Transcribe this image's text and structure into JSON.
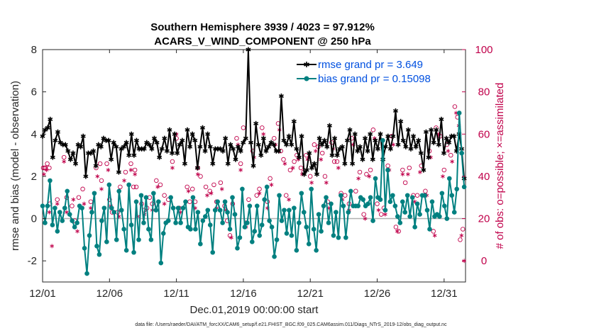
{
  "chart_data": {
    "type": "line",
    "title": "Southern Hemisphere 3939 / 4023 = 97.912%",
    "subtitle": "ACARS_V_WIND_COMPONENT @ 250 hPa",
    "xlabel": "Dec.01,2019 00:00:00 start",
    "ylabel": "rmse and bias (model - observation)",
    "ylabel_right": "# of obs: o=possible; ×=assimilated",
    "footnote": "data file: /Users/raeder/DAI/ATM_forcXX/CAM6_setup/f.e21.FHIST_BGC.f09_025.CAM6assim.011/Diags_NTrS_2019-12/obs_diag_output.nc",
    "xlim": [
      0,
      31.6
    ],
    "ylim": [
      -3,
      8
    ],
    "ylim_right": [
      -10,
      100
    ],
    "x_ticks": [
      0,
      5,
      10,
      15,
      20,
      25,
      30
    ],
    "x_tick_labels": [
      "12/01",
      "12/06",
      "12/11",
      "12/16",
      "12/21",
      "12/26",
      "12/31"
    ],
    "y_ticks": [
      -2,
      0,
      2,
      4,
      6,
      8
    ],
    "y_tick_labels": [
      "-2",
      "0",
      "2",
      "4",
      "6",
      "8"
    ],
    "y_ticks_right": [
      0,
      20,
      40,
      60,
      80,
      100
    ],
    "y_tick_labels_right": [
      "0",
      "20",
      "40",
      "60",
      "80",
      "100"
    ],
    "legend_position": "top-right",
    "colors": {
      "rmse": "#000000",
      "bias": "#008080",
      "obs": "#c0004a",
      "zero_line": "#b0b0b0",
      "axis": "#262626",
      "legend_text": "#0050e0"
    },
    "series": [
      {
        "name": "rmse grand pr = 3.649",
        "color": "#000000",
        "marker": "asterisk",
        "values": [
          3.9,
          4.2,
          4.3,
          4.7,
          2.9,
          3.7,
          4.1,
          3.6,
          3.5,
          3.5,
          3.2,
          2.8,
          3.1,
          2.6,
          3.5,
          3.4,
          3.9,
          2.0,
          3.1,
          3.1,
          3.2,
          2.5,
          3.5,
          3.4,
          3.8,
          3.7,
          3.7,
          2.8,
          3.6,
          3.4,
          2.2,
          3.3,
          3.4,
          3.6,
          3.0,
          4.0,
          3.0,
          3.7,
          3.3,
          3.3,
          3.3,
          3.6,
          3.5,
          3.3,
          3.8,
          3.6,
          2.9,
          3.3,
          3.8,
          3.2,
          4.2,
          3.1,
          4.0,
          3.1,
          3.5,
          3.7,
          2.6,
          4.2,
          3.4,
          4.0,
          3.7,
          2.4,
          3.4,
          4.3,
          3.2,
          4.0,
          3.4,
          2.6,
          3.3,
          3.3,
          3.3,
          3.2,
          3.8,
          2.6,
          3.5,
          3.3,
          2.8,
          3.4,
          3.2,
          3.6,
          3.8,
          8.0,
          3.6,
          2.5,
          4.5,
          3.5,
          3.0,
          3.8,
          3.2,
          3.4,
          3.6,
          3.5,
          3.2,
          3.2,
          5.8,
          3.7,
          3.5,
          3.9,
          3.5,
          4.6,
          3.3,
          2.9,
          3.9,
          2.1,
          2.3,
          3.1,
          2.4,
          2.6,
          2.1,
          3.8,
          3.5,
          3.7,
          3.4,
          4.4,
          3.0,
          3.8,
          3.0,
          3.3,
          3.4,
          2.6,
          3.7,
          4.2,
          2.6,
          4.0,
          3.2,
          3.4,
          2.8,
          3.8,
          3.2,
          4.0,
          2.8,
          3.7,
          3.3,
          4.0,
          2.8,
          3.4,
          3.9,
          3.3,
          3.9,
          5.1,
          3.5,
          4.6,
          3.7,
          3.4,
          4.2,
          3.3,
          3.9,
          3.4,
          3.7,
          3.1,
          2.3,
          4.1,
          2.9,
          4.2,
          3.6,
          4.2,
          3.5,
          4.7,
          3.1,
          3.8,
          3.6,
          3.9,
          3.9,
          3.2,
          4.0,
          3.3,
          1.9
        ]
      },
      {
        "name": "bias grand pr = 0.15098",
        "color": "#008080",
        "marker": "dot",
        "values": [
          0.6,
          -0.2,
          0.6,
          1.8,
          -0.3,
          0.5,
          -0.6,
          0.3,
          -0.1,
          0.5,
          1.3,
          0.2,
          -0.1,
          -0.4,
          -0.2,
          0.6,
          0.5,
          -1.4,
          -2.6,
          -0.8,
          0.3,
          1.2,
          -1.3,
          -1.7,
          -0.1,
          0.5,
          -1.1,
          1.6,
          0.5,
          0.3,
          -1.0,
          1.3,
          0.4,
          -0.5,
          -1.5,
          1.6,
          -0.3,
          -1.6,
          0.8,
          -1.0,
          1.1,
          -0.2,
          1.0,
          -0.5,
          -1.0,
          1.2,
          0.4,
          0.8,
          -2.1,
          -0.7,
          -0.2,
          -0.1,
          1.0,
          0.5,
          -0.2,
          0.5,
          -0.2,
          0.5,
          0.8,
          -0.4,
          -0.5,
          1.0,
          -0.5,
          0.3,
          -1.2,
          -0.1,
          0.1,
          0.4,
          -0.3,
          -1.6,
          0.4,
          0.8,
          0.4,
          -0.2,
          0.8,
          0.3,
          -0.5,
          1.0,
          0.2,
          -1.4,
          -0.9,
          1.4,
          -0.4,
          -0.2,
          0.6,
          -1.1,
          -0.6,
          0.6,
          -0.8,
          -0.3,
          0.9,
          1.5,
          -0.1,
          -0.4,
          -1.8,
          -1.0,
          1.1,
          -0.1,
          0.4,
          -0.7,
          0.4,
          -0.8,
          0.5,
          -1.5,
          -0.2,
          1.2,
          0.3,
          -0.4,
          -1.2,
          1.4,
          -0.5,
          -1.5,
          0.2,
          -0.6,
          0.6,
          1.0,
          -0.2,
          0.7,
          -0.8,
          0.3,
          -0.9,
          1.1,
          0.6,
          -0.9,
          0.3,
          1.3,
          0.6,
          0.6,
          0.6,
          1.0,
          0.9,
          0.6,
          0.7,
          1.0,
          -0.1,
          1.9,
          1.0,
          0.9,
          3.7,
          0.4,
          2.3,
          0.8,
          1.1,
          0.6,
          0.1,
          -0.2,
          0.8,
          0.3,
          1.1,
          0.1,
          1.0,
          -0.4,
          0.7,
          0.2,
          1.1,
          1.1,
          0.4,
          -0.5,
          0.8,
          0.1,
          0.2,
          0.1,
          1.2,
          0.6,
          0.0,
          1.9,
          1.1,
          0.3,
          1.4,
          5.0,
          3.1,
          1.5
        ]
      }
    ],
    "obs_possible": [
      [
        0.05,
        44
      ],
      [
        0.15,
        44
      ],
      [
        0.2,
        44
      ],
      [
        0.35,
        46
      ],
      [
        0.5,
        44
      ],
      [
        0.55,
        27
      ],
      [
        1.1,
        29
      ],
      [
        1.6,
        49
      ],
      [
        1.8,
        30
      ],
      [
        2.2,
        26
      ],
      [
        2.4,
        19
      ],
      [
        2.7,
        30
      ],
      [
        3.0,
        34
      ],
      [
        3.6,
        28
      ],
      [
        4.0,
        44
      ],
      [
        4.3,
        46
      ],
      [
        4.4,
        38
      ],
      [
        4.8,
        46
      ],
      [
        5.0,
        29
      ],
      [
        5.2,
        23
      ],
      [
        5.6,
        23
      ],
      [
        5.8,
        35
      ],
      [
        6.2,
        42
      ],
      [
        6.6,
        46
      ],
      [
        6.8,
        35
      ],
      [
        6.9,
        43
      ],
      [
        7.0,
        35
      ],
      [
        7.4,
        27
      ],
      [
        7.6,
        24
      ],
      [
        7.8,
        25
      ],
      [
        8.0,
        30
      ],
      [
        8.2,
        27
      ],
      [
        8.5,
        38
      ],
      [
        8.8,
        36
      ],
      [
        9.1,
        31
      ],
      [
        9.4,
        29
      ],
      [
        9.7,
        47
      ],
      [
        10.0,
        58
      ],
      [
        10.2,
        25
      ],
      [
        10.8,
        35
      ],
      [
        11.0,
        28
      ],
      [
        11.2,
        34
      ],
      [
        11.4,
        28
      ],
      [
        11.6,
        44
      ],
      [
        11.8,
        40
      ],
      [
        12.2,
        35
      ],
      [
        12.5,
        33
      ],
      [
        12.8,
        36
      ],
      [
        13.0,
        28
      ],
      [
        13.3,
        37
      ],
      [
        13.6,
        26
      ],
      [
        13.8,
        19
      ],
      [
        14.0,
        12
      ],
      [
        14.2,
        27
      ],
      [
        14.5,
        58
      ],
      [
        14.8,
        46
      ],
      [
        15.0,
        63
      ],
      [
        15.2,
        18
      ],
      [
        15.4,
        29
      ],
      [
        15.7,
        52
      ],
      [
        16.0,
        31
      ],
      [
        16.2,
        34
      ],
      [
        16.4,
        63
      ],
      [
        16.8,
        28
      ],
      [
        17.0,
        39
      ],
      [
        17.3,
        58
      ],
      [
        17.6,
        65
      ],
      [
        17.8,
        52
      ],
      [
        18.0,
        48
      ],
      [
        18.2,
        31
      ],
      [
        18.5,
        43
      ],
      [
        18.8,
        47
      ],
      [
        19.0,
        50
      ],
      [
        19.3,
        44
      ],
      [
        19.5,
        42
      ],
      [
        19.7,
        50
      ],
      [
        20.0,
        40
      ],
      [
        20.3,
        55
      ],
      [
        20.6,
        54
      ],
      [
        20.9,
        51
      ],
      [
        21.1,
        40
      ],
      [
        21.3,
        28
      ],
      [
        21.6,
        56
      ],
      [
        21.8,
        47
      ],
      [
        22.0,
        47
      ],
      [
        22.3,
        32
      ],
      [
        22.6,
        31
      ],
      [
        22.9,
        27
      ],
      [
        23.1,
        58
      ],
      [
        23.4,
        33
      ],
      [
        23.7,
        42
      ],
      [
        24.0,
        22
      ],
      [
        24.2,
        41
      ],
      [
        24.5,
        43
      ],
      [
        24.7,
        62
      ],
      [
        25.0,
        27
      ],
      [
        25.3,
        22
      ],
      [
        25.5,
        25
      ],
      [
        25.8,
        45
      ],
      [
        26.1,
        59
      ],
      [
        26.4,
        16
      ],
      [
        26.6,
        14
      ],
      [
        26.9,
        43
      ],
      [
        27.1,
        37
      ],
      [
        27.4,
        44
      ],
      [
        27.7,
        31
      ],
      [
        28.0,
        31
      ],
      [
        28.3,
        45
      ],
      [
        28.6,
        33
      ],
      [
        28.9,
        52
      ],
      [
        29.2,
        14
      ],
      [
        29.4,
        63
      ],
      [
        29.7,
        59
      ],
      [
        30.0,
        43
      ],
      [
        30.2,
        55
      ],
      [
        30.5,
        50
      ],
      [
        30.8,
        73
      ],
      [
        31.0,
        68
      ],
      [
        31.2,
        10
      ],
      [
        31.4,
        15
      ]
    ],
    "obs_assimilated": [
      [
        0.1,
        41
      ],
      [
        0.3,
        43
      ],
      [
        0.5,
        23
      ],
      [
        0.7,
        7
      ],
      [
        1.1,
        27
      ],
      [
        1.6,
        47
      ],
      [
        1.8,
        23
      ],
      [
        2.3,
        29
      ],
      [
        2.6,
        14
      ],
      [
        3.1,
        27
      ],
      [
        3.6,
        25
      ],
      [
        4.1,
        40
      ],
      [
        4.4,
        34
      ],
      [
        4.9,
        43
      ],
      [
        5.1,
        26
      ],
      [
        5.7,
        21
      ],
      [
        6.1,
        38
      ],
      [
        6.6,
        43
      ],
      [
        6.9,
        41
      ],
      [
        7.1,
        21
      ],
      [
        7.6,
        22
      ],
      [
        8.2,
        24
      ],
      [
        8.6,
        35
      ],
      [
        9.1,
        27
      ],
      [
        9.7,
        44
      ],
      [
        10.0,
        60
      ],
      [
        10.3,
        23
      ],
      [
        10.9,
        33
      ],
      [
        11.4,
        25
      ],
      [
        11.6,
        41
      ],
      [
        12.3,
        31
      ],
      [
        12.6,
        32
      ],
      [
        13.0,
        25
      ],
      [
        13.4,
        34
      ],
      [
        13.7,
        24
      ],
      [
        14.1,
        11
      ],
      [
        14.6,
        55
      ],
      [
        14.8,
        43
      ],
      [
        15.2,
        16
      ],
      [
        15.5,
        26
      ],
      [
        15.8,
        49
      ],
      [
        16.2,
        32
      ],
      [
        16.5,
        60
      ],
      [
        16.8,
        25
      ],
      [
        17.1,
        36
      ],
      [
        17.4,
        55
      ],
      [
        17.7,
        62
      ],
      [
        18.1,
        46
      ],
      [
        18.4,
        29
      ],
      [
        18.7,
        44
      ],
      [
        19.1,
        48
      ],
      [
        19.4,
        41
      ],
      [
        19.8,
        48
      ],
      [
        20.1,
        37
      ],
      [
        20.4,
        52
      ],
      [
        20.8,
        48
      ],
      [
        21.2,
        37
      ],
      [
        21.4,
        25
      ],
      [
        21.7,
        53
      ],
      [
        22.1,
        44
      ],
      [
        22.4,
        29
      ],
      [
        22.9,
        24
      ],
      [
        23.2,
        55
      ],
      [
        23.6,
        39
      ],
      [
        24.1,
        20
      ],
      [
        24.4,
        40
      ],
      [
        24.8,
        58
      ],
      [
        25.1,
        24
      ],
      [
        25.6,
        22
      ],
      [
        25.9,
        43
      ],
      [
        26.2,
        55
      ],
      [
        26.5,
        14
      ],
      [
        26.9,
        41
      ],
      [
        27.3,
        41
      ],
      [
        27.8,
        28
      ],
      [
        28.2,
        42
      ],
      [
        28.7,
        31
      ],
      [
        29.0,
        49
      ],
      [
        29.3,
        12
      ],
      [
        29.6,
        60
      ],
      [
        29.9,
        40
      ],
      [
        30.3,
        52
      ],
      [
        30.6,
        47
      ],
      [
        30.9,
        70
      ],
      [
        31.1,
        64
      ],
      [
        31.3,
        12
      ],
      [
        31.5,
        0
      ]
    ]
  }
}
